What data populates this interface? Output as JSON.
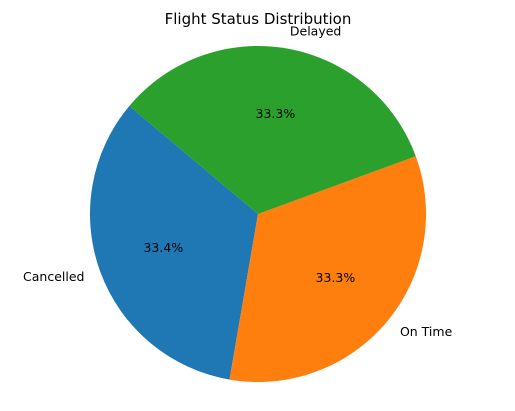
{
  "chart_data": {
    "type": "pie",
    "title": "Flight Status Distribution",
    "start_angle_deg": 140,
    "direction": "counterclockwise",
    "slices": [
      {
        "label": "Cancelled",
        "value": 33.4,
        "pct_label": "33.4%",
        "color": "#1f77b4"
      },
      {
        "label": "On Time",
        "value": 33.3,
        "pct_label": "33.3%",
        "color": "#ff7f0e"
      },
      {
        "label": "Delayed",
        "value": 33.3,
        "pct_label": "33.3%",
        "color": "#2ca02c"
      }
    ]
  }
}
